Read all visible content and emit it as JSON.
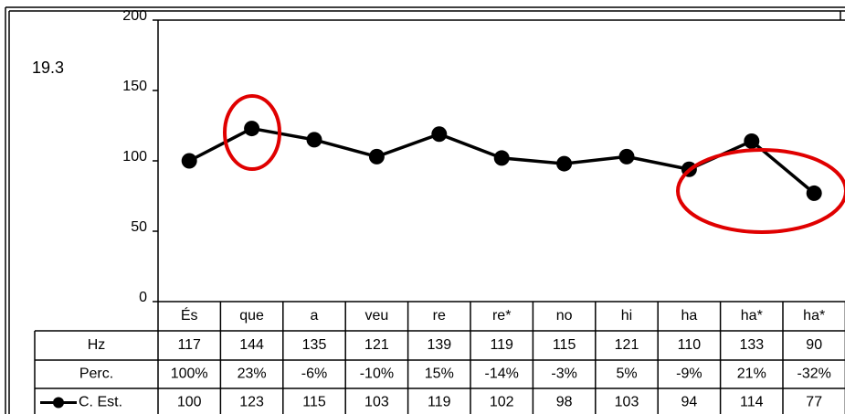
{
  "chart_data": {
    "type": "line",
    "annotation": "19.3",
    "categories": [
      "És",
      "que",
      "a",
      "veu",
      "re",
      "re*",
      "no",
      "hi",
      "ha",
      "ha*",
      "ha*"
    ],
    "series": [
      {
        "name": "C. Est.",
        "color": "#000000",
        "values": [
          100,
          123,
          115,
          103,
          119,
          102,
          98,
          103,
          94,
          114,
          77
        ]
      }
    ],
    "ylim": [
      0,
      200
    ],
    "yticks": [
      0,
      50,
      100,
      150,
      200
    ],
    "table": {
      "rows": [
        {
          "label": "Hz",
          "values": [
            117,
            144,
            135,
            121,
            139,
            119,
            115,
            121,
            110,
            133,
            90
          ]
        },
        {
          "label": "Perc.",
          "values": [
            "100%",
            "23%",
            "-6%",
            "-10%",
            "15%",
            "-14%",
            "-3%",
            "5%",
            "-9%",
            "21%",
            "-32%"
          ]
        }
      ]
    }
  }
}
